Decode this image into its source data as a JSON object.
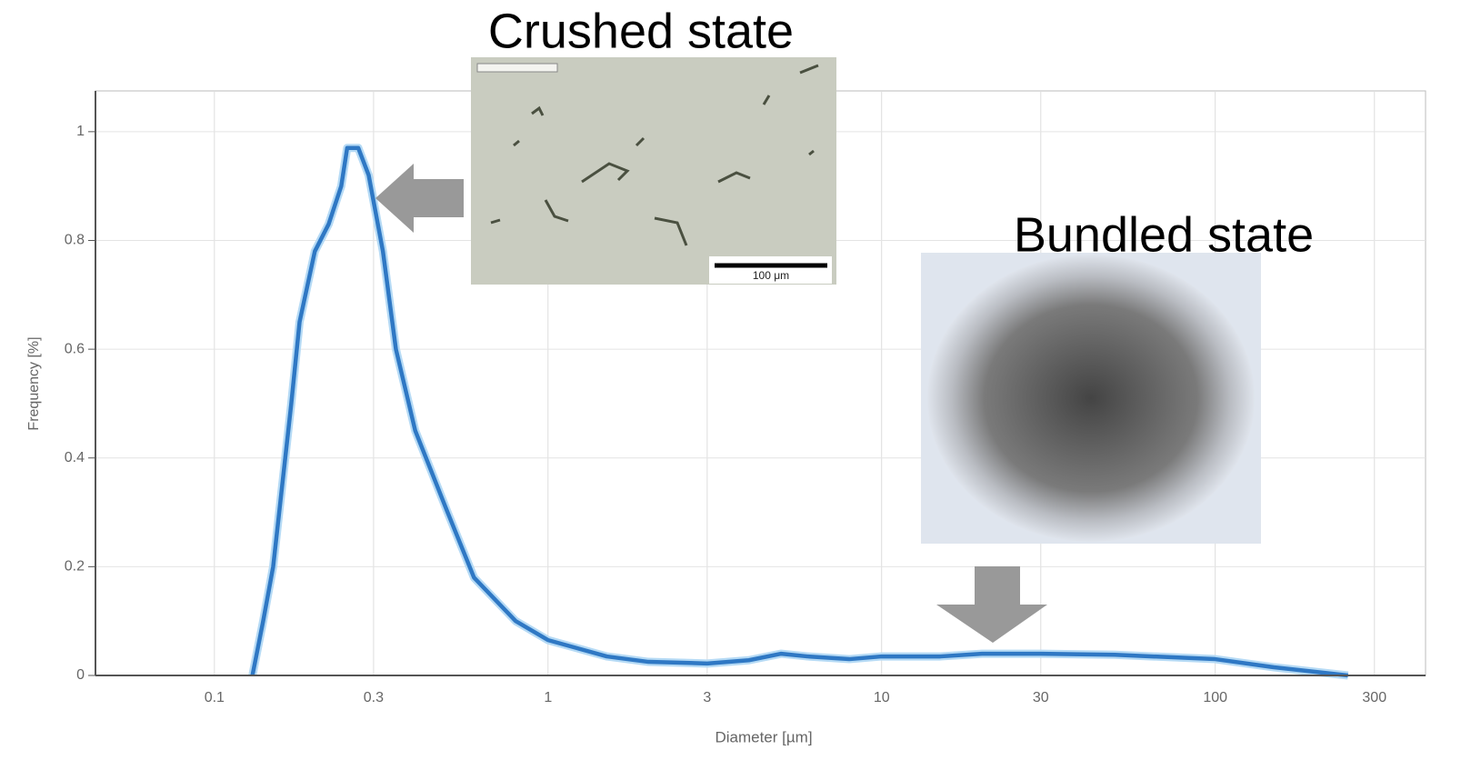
{
  "chart_data": {
    "type": "line",
    "x_label": "Diameter [µm]",
    "y_label": "Frequency [%]",
    "log_x": true,
    "grid": true,
    "xlim": [
      0.044,
      427
    ],
    "ylim": [
      0,
      1.075
    ],
    "xticks": [
      0.1,
      0.3,
      1,
      3,
      10,
      30,
      100,
      300
    ],
    "yticks": [
      0,
      0.2,
      0.4,
      0.6,
      0.8,
      1
    ],
    "x": [
      0.13,
      0.14,
      0.15,
      0.17,
      0.18,
      0.2,
      0.22,
      0.24,
      0.25,
      0.27,
      0.29,
      0.32,
      0.35,
      0.4,
      0.5,
      0.6,
      0.8,
      1,
      1.5,
      2,
      3,
      4,
      5,
      6,
      8,
      10,
      15,
      20,
      30,
      50,
      100,
      150,
      250
    ],
    "series": [
      {
        "color": "#2f78c4",
        "values": [
          0,
          0.1,
          0.2,
          0.5,
          0.65,
          0.78,
          0.83,
          0.9,
          0.97,
          0.97,
          0.92,
          0.78,
          0.6,
          0.45,
          0.3,
          0.18,
          0.1,
          0.065,
          0.035,
          0.025,
          0.022,
          0.028,
          0.04,
          0.035,
          0.03,
          0.035,
          0.035,
          0.04,
          0.04,
          0.038,
          0.03,
          0.015,
          0
        ]
      }
    ],
    "annotations": [
      "Crushed state",
      "Bundled state",
      "100 μm"
    ]
  }
}
